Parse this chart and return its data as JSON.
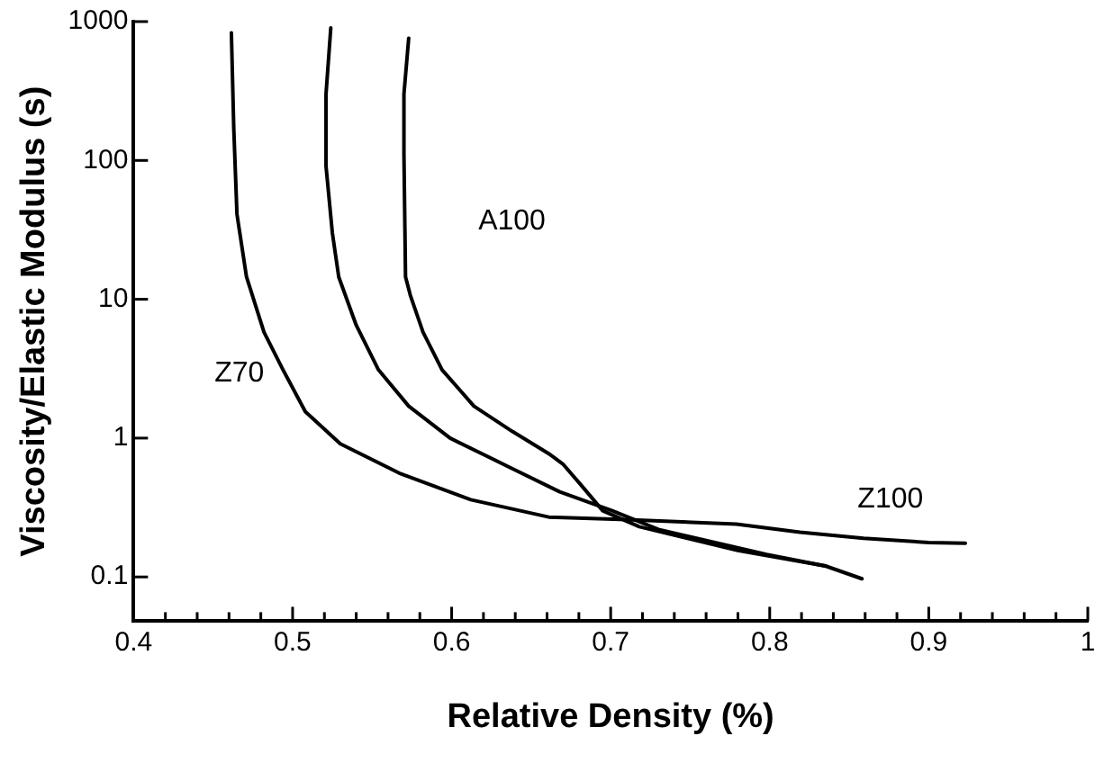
{
  "chart_data": {
    "type": "line",
    "xlabel": "Relative Density (%)",
    "ylabel": "Viscosity/Elastic Modulus (s)",
    "log": "y",
    "grid": false,
    "legend": false,
    "marker": "none",
    "line_style": "solid",
    "xlim": [
      0.4,
      1
    ],
    "ylim": [
      0.048,
      1000
    ],
    "xticks": [
      0.4,
      {
        "value": 0.42,
        "label": null
      },
      {
        "value": 0.44,
        "label": null
      },
      {
        "value": 0.46,
        "label": null
      },
      {
        "value": 0.48,
        "label": null
      },
      0.5,
      {
        "value": 0.52,
        "label": null
      },
      {
        "value": 0.54,
        "label": null
      },
      {
        "value": 0.56,
        "label": null
      },
      {
        "value": 0.58,
        "label": null
      },
      0.6,
      {
        "value": 0.62,
        "label": null
      },
      {
        "value": 0.64,
        "label": null
      },
      {
        "value": 0.66,
        "label": null
      },
      {
        "value": 0.68,
        "label": null
      },
      0.7,
      {
        "value": 0.72,
        "label": null
      },
      {
        "value": 0.74,
        "label": null
      },
      {
        "value": 0.76,
        "label": null
      },
      {
        "value": 0.78,
        "label": null
      },
      0.8,
      {
        "value": 0.82,
        "label": null
      },
      {
        "value": 0.84,
        "label": null
      },
      {
        "value": 0.86,
        "label": null
      },
      {
        "value": 0.88,
        "label": null
      },
      0.9,
      {
        "value": 0.92,
        "label": null
      },
      {
        "value": 0.94,
        "label": null
      },
      {
        "value": 0.96,
        "label": null
      },
      {
        "value": 0.98,
        "label": null
      },
      1
    ],
    "yticks": [
      0.1,
      1,
      10,
      100,
      1000
    ],
    "series": [
      {
        "color": "#000000",
        "x": [
          0.4615,
          0.463,
          0.465,
          0.471,
          0.482,
          0.494,
          0.508,
          0.53,
          0.567,
          0.612,
          0.661,
          0.706,
          0.779,
          0.819,
          0.859,
          0.9,
          0.923
        ],
        "values": [
          830,
          170,
          41,
          14.5,
          5.8,
          3.1,
          1.55,
          0.91,
          0.56,
          0.36,
          0.27,
          0.26,
          0.24,
          0.21,
          0.19,
          0.177,
          0.175
        ]
      },
      {
        "color": "#000000",
        "x": [
          0.524,
          0.521,
          0.521,
          0.525,
          0.529,
          0.54,
          0.554,
          0.573,
          0.599,
          0.636,
          0.668,
          0.701,
          0.73,
          0.798,
          0.835,
          0.858
        ],
        "values": [
          900,
          300,
          91,
          30,
          14.5,
          6.5,
          3.1,
          1.7,
          1.0,
          0.62,
          0.41,
          0.3,
          0.22,
          0.145,
          0.12,
          0.097
        ]
      },
      {
        "color": "#000000",
        "x": [
          0.573,
          0.57,
          0.57,
          0.571,
          0.574,
          0.582,
          0.594,
          0.614,
          0.638,
          0.662,
          0.67,
          0.682,
          0.695,
          0.718,
          0.78,
          0.835
        ],
        "values": [
          760,
          300,
          112,
          14.5,
          10.7,
          5.8,
          3.1,
          1.7,
          1.12,
          0.76,
          0.65,
          0.45,
          0.3,
          0.23,
          0.155,
          0.12
        ]
      }
    ],
    "annotations": [
      "Z70",
      "A100",
      "Z100"
    ]
  }
}
